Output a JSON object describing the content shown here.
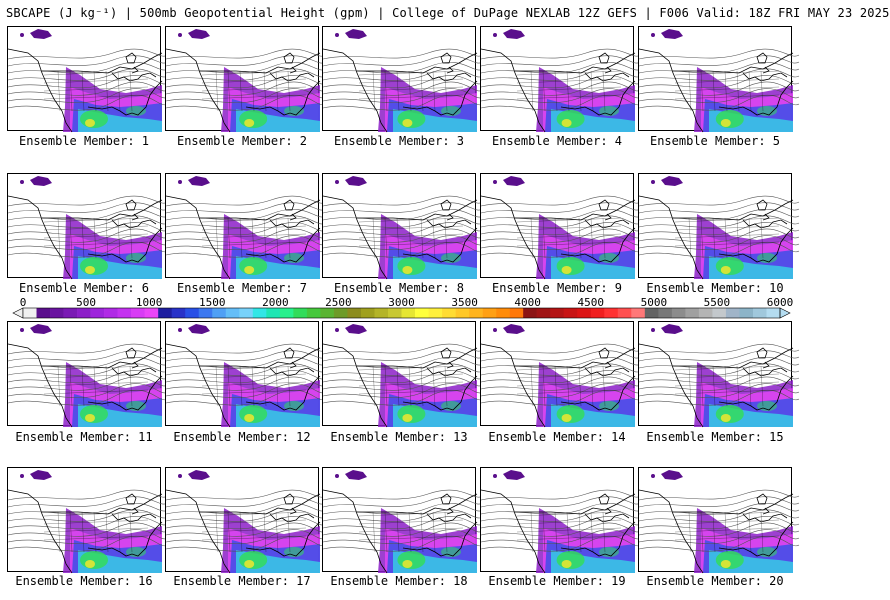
{
  "title": "SBCAPE (J kg⁻¹) | 500mb Geopotential Height (gpm) | College of DuPage NEXLAB 12Z GEFS | F006 Valid: 18Z FRI MAY 23 2025",
  "panels": [
    {
      "caption": "Ensemble Member: 1"
    },
    {
      "caption": "Ensemble Member: 2"
    },
    {
      "caption": "Ensemble Member: 3"
    },
    {
      "caption": "Ensemble Member: 4"
    },
    {
      "caption": "Ensemble Member: 5"
    },
    {
      "caption": "Ensemble Member: 6"
    },
    {
      "caption": "Ensemble Member: 7"
    },
    {
      "caption": "Ensemble Member: 8"
    },
    {
      "caption": "Ensemble Member: 9"
    },
    {
      "caption": "Ensemble Member: 10"
    },
    {
      "caption": "Ensemble Member: 11"
    },
    {
      "caption": "Ensemble Member: 12"
    },
    {
      "caption": "Ensemble Member: 13"
    },
    {
      "caption": "Ensemble Member: 14"
    },
    {
      "caption": "Ensemble Member: 15"
    },
    {
      "caption": "Ensemble Member: 16"
    },
    {
      "caption": "Ensemble Member: 17"
    },
    {
      "caption": "Ensemble Member: 18"
    },
    {
      "caption": "Ensemble Member: 19"
    },
    {
      "caption": "Ensemble Member: 20"
    }
  ],
  "colorbar": {
    "tick_labels": [
      "0",
      "500",
      "1000",
      "1500",
      "2000",
      "2500",
      "3000",
      "3500",
      "4000",
      "4500",
      "5000",
      "5500",
      "6000"
    ],
    "colors": [
      "#f0f0f0",
      "#5a0f8c",
      "#6a14a0",
      "#7a1ab4",
      "#8c1fc8",
      "#9e24dc",
      "#b02ae6",
      "#c432f0",
      "#d83cf5",
      "#ea46f8",
      "#1e1ea0",
      "#2832c8",
      "#2850e6",
      "#3c78f0",
      "#50a0f5",
      "#64bef8",
      "#78d2fa",
      "#32e6e6",
      "#1ee6b4",
      "#28f08c",
      "#32dc5a",
      "#46c83c",
      "#5ab432",
      "#6e9b28",
      "#8c8c1e",
      "#a0a01e",
      "#b4b428",
      "#c8c832",
      "#e6e632",
      "#ffff3c",
      "#fff03c",
      "#ffdc32",
      "#ffc828",
      "#ffb41e",
      "#ffa014",
      "#ff8c0a",
      "#ff780a",
      "#8c1414",
      "#a01414",
      "#b41414",
      "#c81414",
      "#dc1414",
      "#f01e1e",
      "#ff3232",
      "#ff5050",
      "#ff7878",
      "#646464",
      "#787878",
      "#8c8c8c",
      "#a0a0a0",
      "#b4b4b4",
      "#c3c8cc",
      "#a0b4c8",
      "#8cb4c8",
      "#a0c8dc",
      "#b4dcf0"
    ]
  },
  "field_colors": {
    "purple": "#8c1fc8",
    "magenta": "#ea46f8",
    "blue": "#2850e6",
    "cyan": "#32e6e6",
    "green": "#32dc5a",
    "yellow": "#e6e632",
    "dark_purple": "#5a0f8c"
  }
}
